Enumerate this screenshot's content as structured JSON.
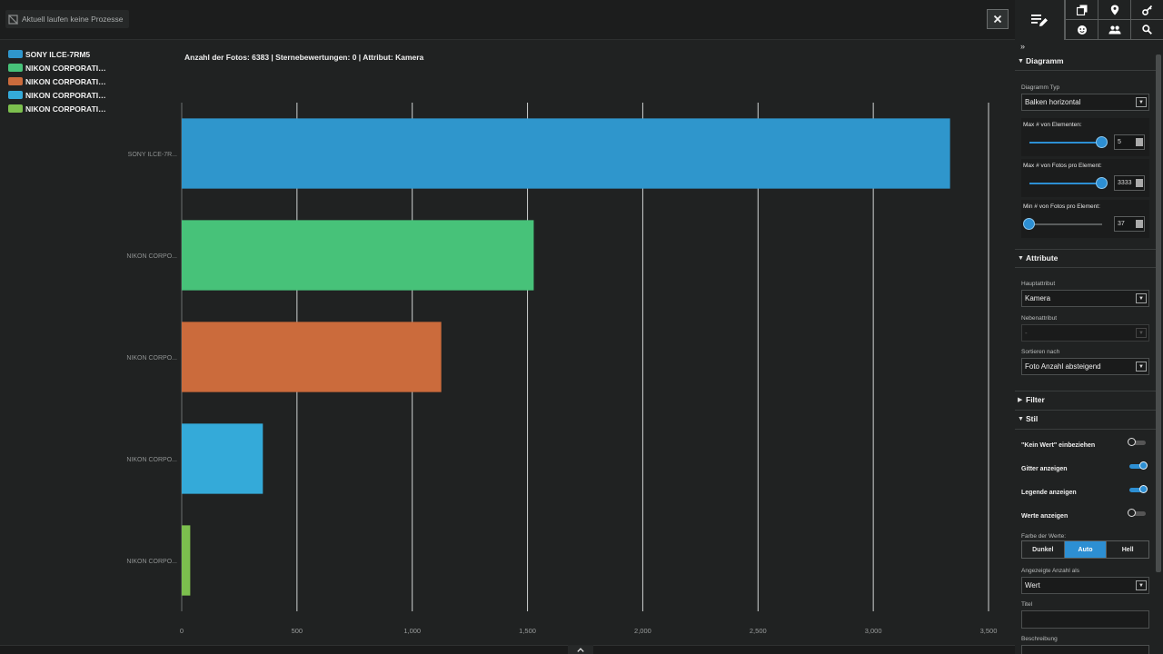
{
  "topbar": {
    "process_status": "Aktuell laufen keine Prozesse",
    "close_icon": "close-icon"
  },
  "toolbar": {
    "main_icon": "edit-list-icon",
    "buttons": [
      "copy-icon",
      "location-pin-icon",
      "key-icon",
      "face-icon",
      "people-icon",
      "search-icon"
    ]
  },
  "chart_info": "Anzahl der Fotos: 6383 | Sternebewertungen: 0 | Attribut: Kamera",
  "legend": [
    {
      "label": "SONY ILCE-7RM5",
      "color": "#2f96cc"
    },
    {
      "label": "NIKON CORPORATION...",
      "color": "#47c279"
    },
    {
      "label": "NIKON CORPORATION...",
      "color": "#cb6b3c"
    },
    {
      "label": "NIKON CORPORATION...",
      "color": "#34aad9"
    },
    {
      "label": "NIKON CORPORATION...",
      "color": "#7cbf4e"
    }
  ],
  "chart_data": {
    "type": "bar",
    "orientation": "horizontal",
    "categories": [
      "SONY ILCE-7R...",
      "NIKON CORPO...",
      "NIKON CORPO...",
      "NIKON CORPO...",
      "NIKON CORPO..."
    ],
    "values": [
      3333,
      1527,
      1126,
      352,
      37
    ],
    "colors": [
      "#2f96cc",
      "#47c279",
      "#cb6b3c",
      "#34aad9",
      "#7cbf4e"
    ],
    "xlim": [
      0,
      3500
    ],
    "xticks": [
      0,
      500,
      1000,
      1500,
      2000,
      2500,
      3000,
      3500
    ],
    "xtick_labels": [
      "0",
      "500",
      "1,000",
      "1,500",
      "2,000",
      "2,500",
      "3,000",
      "3,500"
    ],
    "grid": true,
    "legend_position": "top-left"
  },
  "panel": {
    "collapse_icon": "double-chevron-right-icon",
    "diagramm": {
      "title": "Diagramm",
      "type_label": "Diagramm Typ",
      "type_value": "Balken horizontal",
      "max_elements_label": "Max # von Elementen:",
      "max_elements_value": "5",
      "max_elements_level": 1.0,
      "max_photos_label": "Max # von Fotos pro Element:",
      "max_photos_value": "3333",
      "max_photos_level": 1.0,
      "min_photos_label": "Min # von Fotos pro Element:",
      "min_photos_value": "37",
      "min_photos_level": 0.0
    },
    "attribute": {
      "title": "Attribute",
      "main_label": "Hauptattribut",
      "main_value": "Kamera",
      "secondary_label": "Nebenattribut",
      "secondary_value": "-",
      "sort_label": "Sortieren nach",
      "sort_value": "Foto Anzahl absteigend"
    },
    "filter": {
      "title": "Filter"
    },
    "stil": {
      "title": "Stil",
      "toggles": [
        {
          "label": "\"Kein Wert\" einbeziehen",
          "on": false
        },
        {
          "label": "Gitter anzeigen",
          "on": true
        },
        {
          "label": "Legende anzeigen",
          "on": true
        },
        {
          "label": "Werte anzeigen",
          "on": false
        }
      ],
      "value_color_label": "Farbe der Werte:",
      "value_color_options": [
        "Dunkel",
        "Auto",
        "Hell"
      ],
      "value_color_selected": "Auto",
      "count_as_label": "Angezeigte Anzahl als",
      "count_as_value": "Wert",
      "title_label": "Titel",
      "description_label": "Beschreibung"
    }
  }
}
